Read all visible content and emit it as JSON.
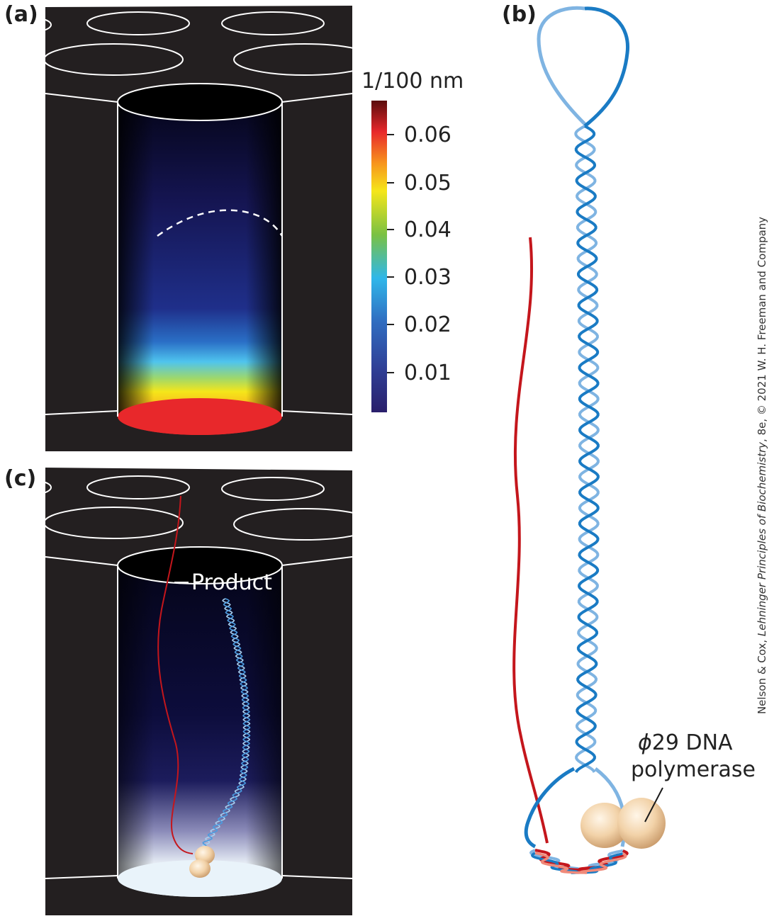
{
  "panels": {
    "a": {
      "label": "(a)"
    },
    "b": {
      "label": "(b)"
    },
    "c": {
      "label": "(c)"
    }
  },
  "colorbar": {
    "unit": "1/100 nm",
    "ticks": [
      "0.06",
      "0.05",
      "0.04",
      "0.03",
      "0.02",
      "0.01"
    ],
    "colors": [
      "#2a1f6b",
      "#2f4fa8",
      "#2fb7ea",
      "#7ac143",
      "#f5e61a",
      "#f7941d",
      "#e8282b",
      "#5a0c0c"
    ]
  },
  "annotations": {
    "product": "Product",
    "polymerase_symbol": "ϕ",
    "polymerase_line1": "29 DNA",
    "polymerase_line2": "polymerase"
  },
  "credit": {
    "before": "Nelson & Cox, ",
    "italic": "Lehninger Principles of Biochemistry",
    "after": ", 8e, © 2021 W. H. Freeman and Company"
  }
}
